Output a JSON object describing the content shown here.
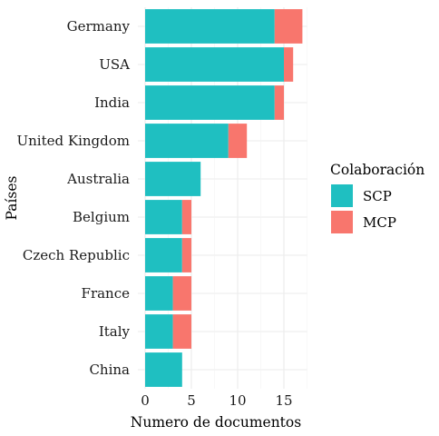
{
  "chart_data": {
    "type": "bar",
    "orientation": "horizontal",
    "stacked": true,
    "categories": [
      "Germany",
      "USA",
      "India",
      "United Kingdom",
      "Australia",
      "Belgium",
      "Czech Republic",
      "France",
      "Italy",
      "China"
    ],
    "series": [
      {
        "name": "SCP",
        "color": "#1fbfc1",
        "values": [
          14,
          15,
          14,
          9,
          6,
          4,
          4,
          3,
          3,
          4
        ]
      },
      {
        "name": "MCP",
        "color": "#f8766d",
        "values": [
          3,
          1,
          1,
          2,
          0,
          1,
          1,
          2,
          2,
          0
        ]
      }
    ],
    "xlabel": "Numero de documentos",
    "ylabel": "Países",
    "xlim": [
      0,
      17.85
    ],
    "xticks": [
      0,
      5,
      10,
      15
    ],
    "grid": true,
    "legend_title": "Colaboración",
    "legend_position": "right"
  }
}
